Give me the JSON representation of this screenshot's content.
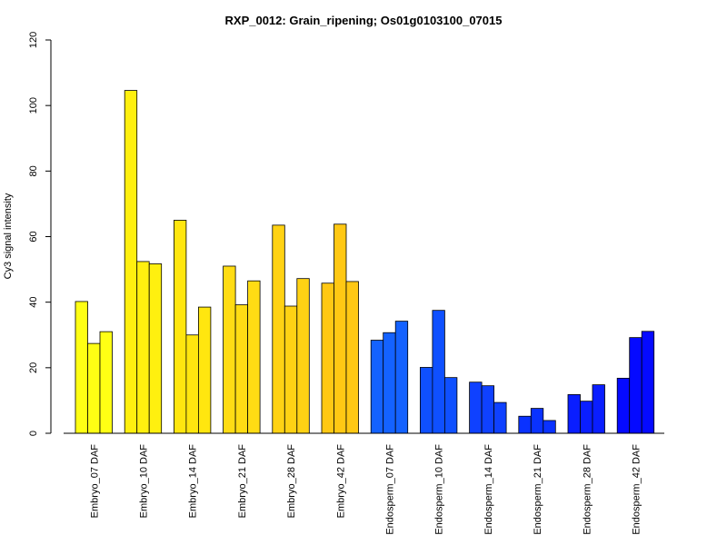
{
  "chart_data": {
    "type": "bar",
    "title": "RXP_0012: Grain_ripening; Os01g0103100_07015",
    "xlabel": "",
    "ylabel": "Cy3 signal intensity",
    "ylim": [
      0,
      120
    ],
    "yticks": [
      0,
      20,
      40,
      60,
      80,
      100,
      120
    ],
    "grid": false,
    "bars_per_group": 3,
    "groups": [
      {
        "label": "Embryo_07 DAF",
        "color": "#FFFF14",
        "values": [
          40.2,
          27.4,
          31.0
        ]
      },
      {
        "label": "Embryo_10 DAF",
        "color": "#FFF00F",
        "values": [
          104.6,
          52.4,
          51.7
        ]
      },
      {
        "label": "Embryo_14 DAF",
        "color": "#FFE60F",
        "values": [
          65.0,
          30.0,
          38.5
        ]
      },
      {
        "label": "Embryo_21 DAF",
        "color": "#FFDC14",
        "values": [
          51.0,
          39.2,
          46.5
        ]
      },
      {
        "label": "Embryo_28 DAF",
        "color": "#FFD214",
        "values": [
          63.5,
          38.8,
          47.2
        ]
      },
      {
        "label": "Embryo_42 DAF",
        "color": "#FFC814",
        "values": [
          45.8,
          63.8,
          46.3
        ]
      },
      {
        "label": "Endosperm_07 DAF",
        "color": "#1462FF",
        "values": [
          28.4,
          30.7,
          34.2
        ]
      },
      {
        "label": "Endosperm_10 DAF",
        "color": "#0F50FF",
        "values": [
          20.1,
          37.5,
          17.0
        ]
      },
      {
        "label": "Endosperm_14 DAF",
        "color": "#0F41FF",
        "values": [
          15.6,
          14.5,
          9.4
        ]
      },
      {
        "label": "Endosperm_21 DAF",
        "color": "#0A32FF",
        "values": [
          5.2,
          7.6,
          3.9
        ]
      },
      {
        "label": "Endosperm_28 DAF",
        "color": "#0A1EFF",
        "values": [
          11.8,
          9.8,
          14.8
        ]
      },
      {
        "label": "Endosperm_42 DAF",
        "color": "#050AFF",
        "values": [
          16.8,
          29.2,
          31.1
        ]
      }
    ]
  }
}
